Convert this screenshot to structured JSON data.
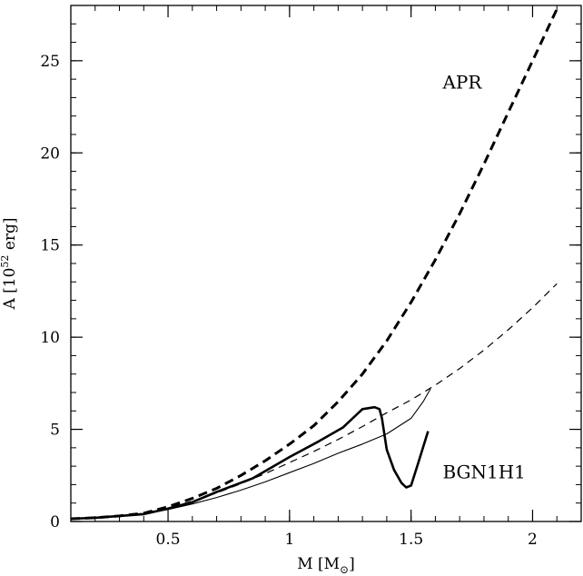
{
  "chart_data": {
    "type": "line",
    "xlabel": {
      "main": "M [M",
      "sub": "⊙",
      "close": "]"
    },
    "ylabel": {
      "main": "A [10",
      "sup": "52",
      "rest": " erg]"
    },
    "xlim": [
      0.1,
      2.2
    ],
    "ylim": [
      0,
      28
    ],
    "x_ticks": [
      {
        "value": 0.5,
        "label": "0.5"
      },
      {
        "value": 1,
        "label": "1"
      },
      {
        "value": 1.5,
        "label": "1.5"
      },
      {
        "value": 2,
        "label": "2"
      }
    ],
    "y_ticks": [
      {
        "value": 0,
        "label": "0"
      },
      {
        "value": 5,
        "label": "5"
      },
      {
        "value": 10,
        "label": "10"
      },
      {
        "value": 15,
        "label": "15"
      },
      {
        "value": 20,
        "label": "20"
      },
      {
        "value": 25,
        "label": "25"
      }
    ],
    "x_minor_step": 0.1,
    "y_minor_step": 1,
    "annotations": [
      {
        "text": "APR",
        "x": 1.63,
        "y": 23.5
      },
      {
        "text": "BGN1H1",
        "x": 1.63,
        "y": 2.35
      }
    ],
    "series": [
      {
        "style": "thick-dashed",
        "x": [
          0.1,
          0.2,
          0.3,
          0.4,
          0.5,
          0.6,
          0.7,
          0.8,
          0.9,
          1.0,
          1.1,
          1.2,
          1.3,
          1.4,
          1.5,
          1.6,
          1.7,
          1.8,
          1.9,
          2.0,
          2.1
        ],
        "y": [
          0.15,
          0.2,
          0.3,
          0.45,
          0.8,
          1.25,
          1.8,
          2.5,
          3.3,
          4.2,
          5.2,
          6.5,
          8.0,
          9.8,
          11.9,
          14.2,
          16.7,
          19.4,
          22.2,
          25.0,
          27.8
        ]
      },
      {
        "style": "thin-dashed",
        "x": [
          0.1,
          0.2,
          0.3,
          0.4,
          0.5,
          0.6,
          0.7,
          0.8,
          0.9,
          1.0,
          1.1,
          1.2,
          1.3,
          1.4,
          1.5,
          1.6,
          1.7,
          1.8,
          1.9,
          2.0,
          2.1
        ],
        "y": [
          0.15,
          0.2,
          0.3,
          0.45,
          0.75,
          1.1,
          1.55,
          2.05,
          2.6,
          3.2,
          3.8,
          4.45,
          5.15,
          5.9,
          6.6,
          7.4,
          8.3,
          9.3,
          10.4,
          11.6,
          12.9
        ]
      },
      {
        "style": "thick-solid",
        "x": [
          0.1,
          0.2,
          0.3,
          0.4,
          0.5,
          0.6,
          0.7,
          0.85,
          1.0,
          1.12,
          1.22,
          1.3,
          1.35,
          1.37,
          1.38,
          1.4,
          1.43,
          1.46,
          1.48,
          1.5,
          1.53,
          1.57
        ],
        "y": [
          0.15,
          0.2,
          0.3,
          0.4,
          0.7,
          1.05,
          1.6,
          2.35,
          3.5,
          4.35,
          5.1,
          6.1,
          6.2,
          6.1,
          5.6,
          3.9,
          2.8,
          2.1,
          1.85,
          1.95,
          3.2,
          4.9
        ]
      },
      {
        "style": "thin-solid",
        "x": [
          0.1,
          0.2,
          0.3,
          0.4,
          0.5,
          0.6,
          0.7,
          0.8,
          0.9,
          1.0,
          1.1,
          1.2,
          1.3,
          1.4,
          1.5,
          1.55,
          1.58
        ],
        "y": [
          0.15,
          0.2,
          0.28,
          0.42,
          0.65,
          0.95,
          1.3,
          1.7,
          2.15,
          2.65,
          3.15,
          3.7,
          4.2,
          4.75,
          5.6,
          6.5,
          7.2
        ]
      }
    ]
  }
}
